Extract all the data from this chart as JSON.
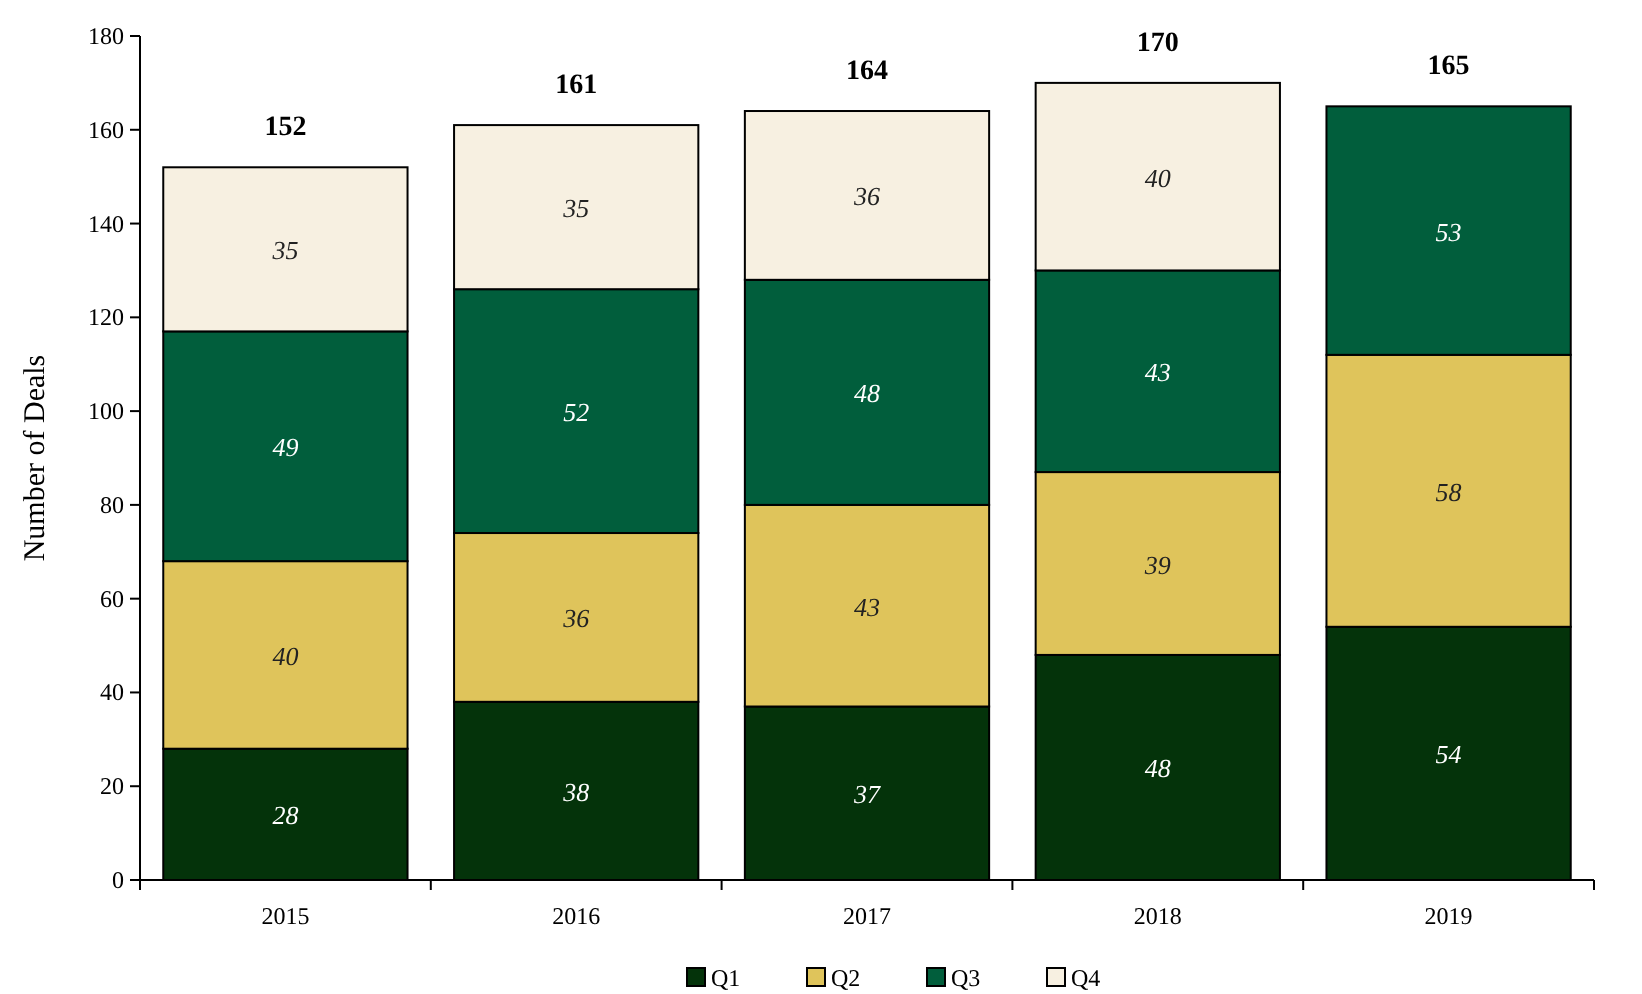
{
  "chart_data": {
    "type": "bar",
    "stacked": true,
    "ylabel": "Number of Deals",
    "categories": [
      "2015",
      "2016",
      "2017",
      "2018",
      "2019"
    ],
    "series": [
      {
        "name": "Q1",
        "color": "#04330a",
        "values": [
          28,
          38,
          37,
          48,
          54
        ]
      },
      {
        "name": "Q2",
        "color": "#dfc45b",
        "values": [
          40,
          36,
          43,
          39,
          58
        ]
      },
      {
        "name": "Q3",
        "color": "#015e3c",
        "values": [
          49,
          52,
          48,
          43,
          53
        ]
      },
      {
        "name": "Q4",
        "color": "#f7f0e1",
        "values": [
          35,
          35,
          36,
          40,
          null
        ]
      }
    ],
    "ylim": [
      0,
      180
    ],
    "yticks": [
      0,
      20,
      40,
      60,
      80,
      100,
      120,
      140,
      160,
      180
    ],
    "data_labels": true,
    "totals": [
      "152",
      "161",
      "164",
      "170",
      "165"
    ],
    "legend": "bottom",
    "grid": false
  }
}
